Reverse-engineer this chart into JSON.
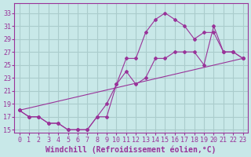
{
  "xlabel": "Windchill (Refroidissement éolien,°C)",
  "background_color": "#c8e8e8",
  "line_color": "#993399",
  "grid_color": "#aacccc",
  "xlim": [
    -0.5,
    23.5
  ],
  "ylim": [
    14.5,
    34.5
  ],
  "xticks": [
    0,
    1,
    2,
    3,
    4,
    5,
    6,
    7,
    8,
    9,
    10,
    11,
    12,
    13,
    14,
    15,
    16,
    17,
    18,
    19,
    20,
    21,
    22,
    23
  ],
  "yticks": [
    15,
    17,
    19,
    21,
    23,
    25,
    27,
    29,
    31,
    33
  ],
  "line1_x": [
    0,
    1,
    2,
    3,
    4,
    5,
    6,
    7,
    8,
    9,
    10,
    11,
    12,
    13,
    14,
    15,
    16,
    17,
    18,
    19,
    20,
    21,
    22,
    23
  ],
  "line1_y": [
    18,
    17,
    17,
    16,
    16,
    15,
    15,
    15,
    17,
    17,
    22,
    26,
    26,
    30,
    32,
    33,
    32,
    31,
    29,
    30,
    30,
    27,
    27,
    26
  ],
  "line2_x": [
    0,
    1,
    2,
    3,
    4,
    5,
    6,
    7,
    8,
    9,
    10,
    11,
    12,
    13,
    14,
    15,
    16,
    17,
    18,
    19,
    20,
    21,
    22,
    23
  ],
  "line2_y": [
    18,
    17,
    17,
    16,
    16,
    15,
    15,
    15,
    17,
    19,
    22,
    24,
    22,
    23,
    26,
    26,
    27,
    27,
    27,
    25,
    31,
    27,
    27,
    26
  ],
  "line3_x": [
    0,
    23
  ],
  "line3_y": [
    18,
    26
  ],
  "font_size": 7,
  "tick_font_size": 6
}
